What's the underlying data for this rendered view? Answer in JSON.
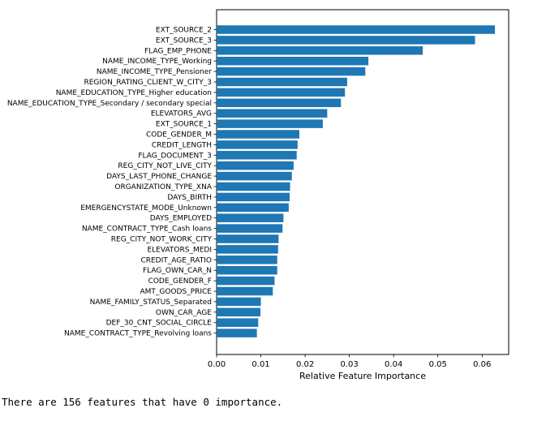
{
  "chart_data": {
    "type": "bar",
    "orientation": "horizontal",
    "color": "#1f77b4",
    "xlabel": "Relative Feature Importance",
    "xlim": [
      0.0,
      0.066
    ],
    "xticks": [
      "0.00",
      "0.01",
      "0.02",
      "0.03",
      "0.04",
      "0.05",
      "0.06"
    ],
    "xtick_values": [
      0.0,
      0.01,
      0.02,
      0.03,
      0.04,
      0.05,
      0.06
    ],
    "categories": [
      "EXT_SOURCE_2",
      "EXT_SOURCE_3",
      "FLAG_EMP_PHONE",
      "NAME_INCOME_TYPE_Working",
      "NAME_INCOME_TYPE_Pensioner",
      "REGION_RATING_CLIENT_W_CITY_3",
      "NAME_EDUCATION_TYPE_Higher education",
      "NAME_EDUCATION_TYPE_Secondary / secondary special",
      "ELEVATORS_AVG",
      "EXT_SOURCE_1",
      "CODE_GENDER_M",
      "CREDIT_LENGTH",
      "FLAG_DOCUMENT_3",
      "REG_CITY_NOT_LIVE_CITY",
      "DAYS_LAST_PHONE_CHANGE",
      "ORGANIZATION_TYPE_XNA",
      "DAYS_BIRTH",
      "EMERGENCYSTATE_MODE_Unknown",
      "DAYS_EMPLOYED",
      "NAME_CONTRACT_TYPE_Cash loans",
      "REG_CITY_NOT_WORK_CITY",
      "ELEVATORS_MEDI",
      "CREDIT_AGE_RATIO",
      "FLAG_OWN_CAR_N",
      "CODE_GENDER_F",
      "AMT_GOODS_PRICE",
      "NAME_FAMILY_STATUS_Separated",
      "OWN_CAR_AGE",
      "DEF_30_CNT_SOCIAL_CIRCLE",
      "NAME_CONTRACT_TYPE_Revolving loans"
    ],
    "values": [
      0.0629,
      0.0584,
      0.0466,
      0.0343,
      0.0336,
      0.0295,
      0.029,
      0.0281,
      0.025,
      0.024,
      0.0187,
      0.0183,
      0.0181,
      0.0174,
      0.017,
      0.0166,
      0.0165,
      0.0163,
      0.0151,
      0.0149,
      0.014,
      0.0139,
      0.0137,
      0.0137,
      0.0131,
      0.0127,
      0.01,
      0.0099,
      0.0094,
      0.0091
    ]
  },
  "output": {
    "text": "There are 156 features that have 0 importance."
  }
}
